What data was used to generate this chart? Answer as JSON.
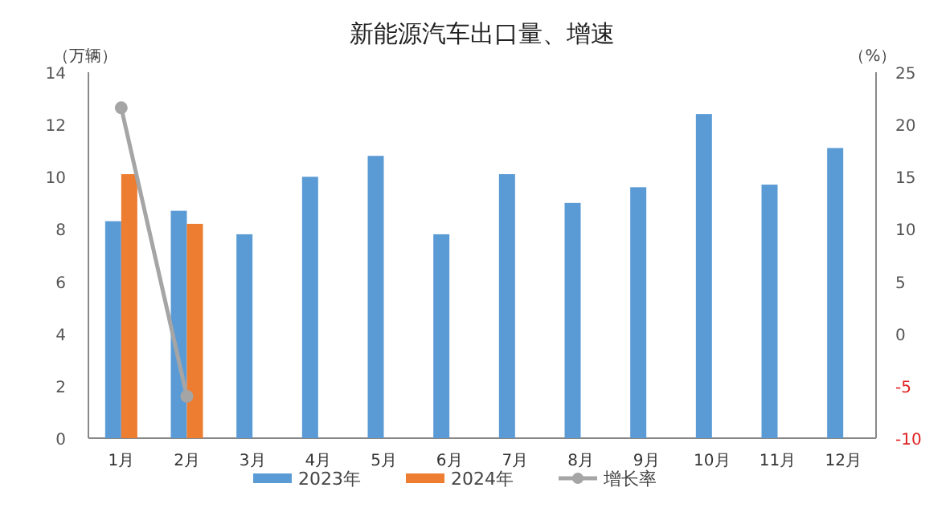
{
  "chart_data": {
    "type": "bar",
    "title": "新能源汽车出口量、增速",
    "ylabel": "（万辆）",
    "y2label": "（%）",
    "categories": [
      "1月",
      "2月",
      "3月",
      "4月",
      "5月",
      "6月",
      "7月",
      "8月",
      "9月",
      "10月",
      "11月",
      "12月"
    ],
    "series": [
      {
        "name": "2023年",
        "color": "#5b9bd5",
        "values": [
          8.3,
          8.7,
          7.8,
          10.0,
          10.8,
          7.8,
          10.1,
          9.0,
          9.6,
          12.4,
          9.7,
          11.1
        ]
      },
      {
        "name": "2024年",
        "color": "#ed7d31",
        "values": [
          10.1,
          8.2,
          null,
          null,
          null,
          null,
          null,
          null,
          null,
          null,
          null,
          null
        ]
      },
      {
        "name": "增长率",
        "type": "line",
        "axis": "y2",
        "color": "#a5a5a5",
        "marker": "circle",
        "values": [
          21.6,
          -6.0,
          null,
          null,
          null,
          null,
          null,
          null,
          null,
          null,
          null,
          null
        ]
      }
    ],
    "ylim": [
      0,
      14
    ],
    "yticks": [
      0,
      2,
      4,
      6,
      8,
      10,
      12,
      14
    ],
    "y2lim": [
      -10,
      25
    ],
    "y2ticks": [
      -10,
      -5,
      0,
      5,
      10,
      15,
      20,
      25
    ],
    "grid": false,
    "legend": "bottom"
  }
}
